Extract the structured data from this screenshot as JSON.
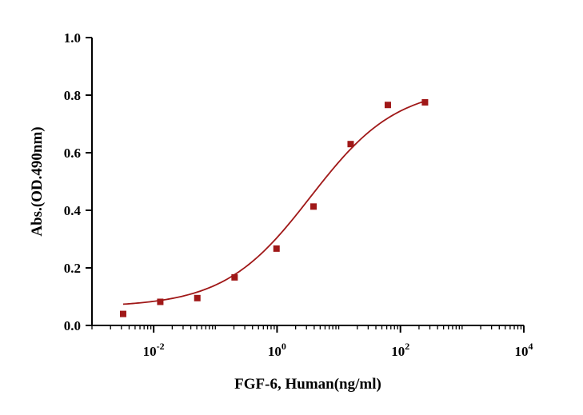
{
  "chart_data": {
    "type": "scatter",
    "xlabel": "FGF-6, Human(ng/ml)",
    "ylabel": "Abs.(OD.490nm)",
    "x_scale": "log10",
    "xlim": [
      0.001,
      10000
    ],
    "ylim": [
      0,
      1.0
    ],
    "grid": false,
    "x_ticks": [
      {
        "value": 0.01,
        "base": "10",
        "exp": "-2"
      },
      {
        "value": 1,
        "base": "10",
        "exp": "0"
      },
      {
        "value": 100,
        "base": "10",
        "exp": "2"
      },
      {
        "value": 10000,
        "base": "10",
        "exp": "4"
      }
    ],
    "y_ticks": [
      {
        "value": 0.0,
        "label": "0.0"
      },
      {
        "value": 0.2,
        "label": "0.2"
      },
      {
        "value": 0.4,
        "label": "0.4"
      },
      {
        "value": 0.6,
        "label": "0.6"
      },
      {
        "value": 0.8,
        "label": "0.8"
      },
      {
        "value": 1.0,
        "label": "1.0"
      }
    ],
    "series": [
      {
        "marker": "square",
        "color": "#A01818",
        "x": [
          0.0032,
          0.0128,
          0.051,
          0.205,
          0.98,
          3.9,
          15.6,
          62.5,
          250
        ],
        "y": [
          0.04,
          0.082,
          0.095,
          0.167,
          0.267,
          0.413,
          0.63,
          0.766,
          0.775
        ]
      }
    ],
    "fit": {
      "model": "4PL",
      "color": "#A01818",
      "bottom": 0.064,
      "top": 0.83,
      "ec50": 3.5,
      "hill": 0.62
    }
  }
}
